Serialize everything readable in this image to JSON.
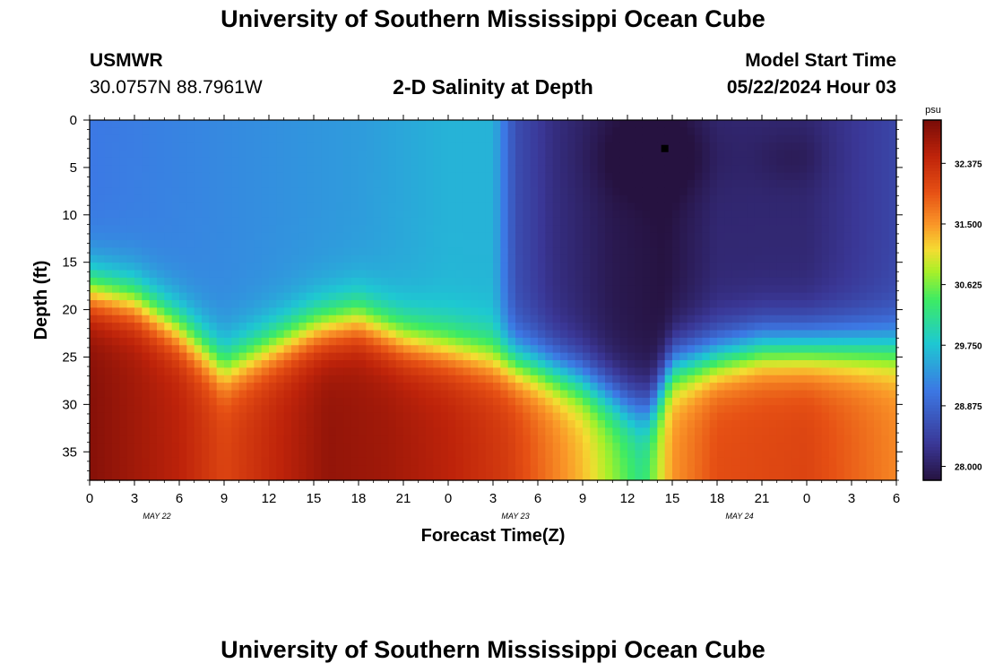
{
  "page": {
    "title": "University of Southern Mississippi Ocean Cube",
    "footer_title": "University of Southern Mississippi Ocean Cube"
  },
  "station": {
    "name": "USMWR",
    "coords": "30.0757N  88.7961W"
  },
  "model": {
    "label": "Model Start Time",
    "start": "05/22/2024 Hour 03"
  },
  "chart_data": {
    "type": "heatmap",
    "title": "2-D Salinity at Depth",
    "xlabel": "Forecast Time(Z)",
    "ylabel": "Depth (ft)",
    "x_ticks": [
      "0",
      "3",
      "6",
      "9",
      "12",
      "15",
      "18",
      "21",
      "0",
      "3",
      "6",
      "9",
      "12",
      "15",
      "18",
      "21",
      "0",
      "3",
      "6"
    ],
    "date_labels": [
      {
        "label": "MAY 22",
        "tick_index": 1.5
      },
      {
        "label": "MAY 23",
        "tick_index": 9.5
      },
      {
        "label": "MAY 24",
        "tick_index": 14.5
      }
    ],
    "xlim": [
      0,
      54
    ],
    "ylim": [
      0,
      38
    ],
    "y_ticks": [
      "0",
      "5",
      "10",
      "15",
      "20",
      "25",
      "30",
      "35"
    ],
    "colorbar": {
      "unit": "psu",
      "range": [
        27.8,
        33.0
      ],
      "ticks": [
        "32.375",
        "31.500",
        "30.625",
        "29.750",
        "28.875",
        "28.000"
      ],
      "tick_values": [
        32.375,
        31.5,
        30.625,
        29.75,
        28.875,
        28.0
      ]
    },
    "marker": {
      "hour": 38.5,
      "depth": 3
    },
    "halocline_depth_ft": [
      [
        0,
        18
      ],
      [
        3,
        19
      ],
      [
        6,
        22
      ],
      [
        9,
        26
      ],
      [
        12,
        24
      ],
      [
        15,
        22
      ],
      [
        18,
        21
      ],
      [
        21,
        23
      ],
      [
        24,
        24
      ],
      [
        27,
        25
      ],
      [
        30,
        26
      ],
      [
        33,
        27.5
      ],
      [
        36,
        30
      ],
      [
        37.5,
        30.5
      ],
      [
        39,
        26
      ],
      [
        42,
        25
      ],
      [
        45,
        24
      ],
      [
        48,
        24
      ],
      [
        51,
        24
      ],
      [
        54,
        24
      ]
    ],
    "surface_salinity_psu": [
      [
        0,
        29.1
      ],
      [
        6,
        29.2
      ],
      [
        12,
        29.3
      ],
      [
        18,
        29.4
      ],
      [
        24,
        29.6
      ],
      [
        27,
        29.6
      ],
      [
        28.5,
        28.6
      ],
      [
        31,
        28.2
      ],
      [
        35,
        27.9
      ],
      [
        38.5,
        27.8
      ],
      [
        42,
        28.1
      ],
      [
        48,
        28.1
      ],
      [
        54,
        28.5
      ]
    ],
    "bottom_salinity_psu": [
      [
        0,
        32.9
      ],
      [
        6,
        32.5
      ],
      [
        9,
        32.1
      ],
      [
        12,
        32.4
      ],
      [
        16,
        32.8
      ],
      [
        20,
        32.7
      ],
      [
        24,
        32.5
      ],
      [
        28,
        32.2
      ],
      [
        33,
        31.3
      ],
      [
        37,
        30.2
      ],
      [
        39,
        31.5
      ],
      [
        42,
        32.0
      ],
      [
        48,
        32.1
      ],
      [
        54,
        31.6
      ]
    ]
  }
}
